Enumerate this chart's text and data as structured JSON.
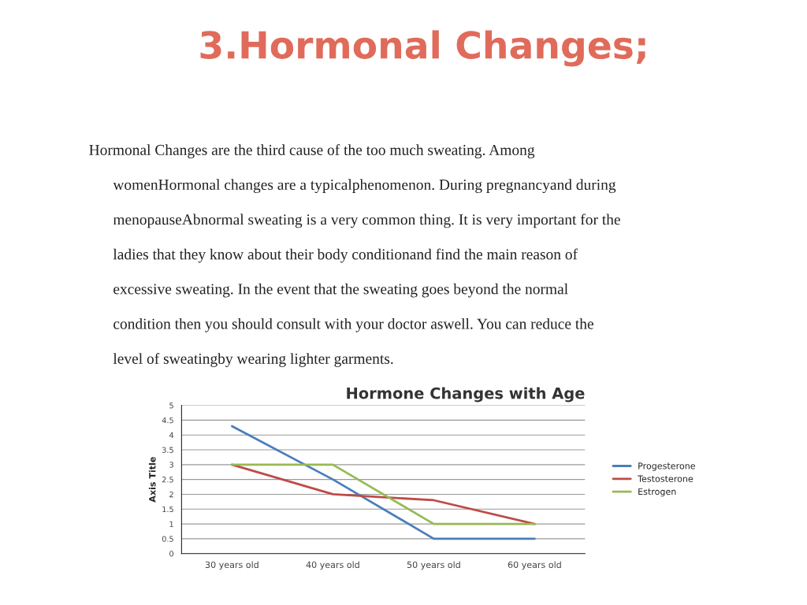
{
  "chart_data": {
    "type": "line",
    "title": "Hormone Changes with Age",
    "ylabel": "Axis Title",
    "annotations": [
      "3.Hormonal Changes;",
      "Hormonal Changes are the third cause of the too much sweating. Among",
      "womenHormonal changes are a typicalphenomenon. During pregnancyand during",
      "menopauseAbnormal sweating is a very common thing. It is very important for the",
      "ladies that they know about their body conditionand find the main reason of",
      "excessive sweating. In the event that the sweating goes beyond the normal",
      "condition then you should consult with your doctor aswell. You can reduce the",
      "level of sweatingby wearing lighter garments."
    ],
    "categories": [
      "30 years old",
      "40 years old",
      "50 years old",
      "60 years old"
    ],
    "series": [
      {
        "name": "Progesterone",
        "color": "#4a7ebb",
        "values": [
          4.3,
          2.5,
          0.5,
          0.5
        ]
      },
      {
        "name": "Testosterone",
        "color": "#be4b48",
        "values": [
          3,
          2,
          1.8,
          1
        ]
      },
      {
        "name": "Estrogen",
        "color": "#98b954",
        "values": [
          3,
          3,
          1,
          1
        ]
      }
    ],
    "ylim": [
      0,
      5
    ],
    "yticks": [
      0,
      0.5,
      1,
      1.5,
      2,
      2.5,
      3,
      3.5,
      4,
      4.5,
      5
    ],
    "grid": "y",
    "legend": "right",
    "marker": "none",
    "line_style": "solid"
  }
}
